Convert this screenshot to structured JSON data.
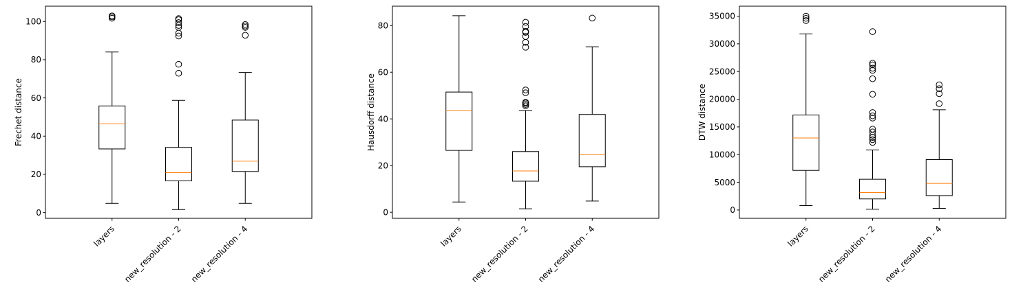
{
  "chart_data": [
    {
      "type": "box",
      "title": "",
      "xlabel": "",
      "ylabel": "Frechet distance",
      "categories": [
        "layers",
        "new_resolution - 2",
        "new_resolution - 4"
      ],
      "ylim": [
        -3,
        108
      ],
      "yticks": [
        0,
        20,
        40,
        60,
        80,
        100
      ],
      "boxes": [
        {
          "whisker_low": 4.8,
          "q1": 33.3,
          "median": 46.4,
          "q3": 55.8,
          "whisker_high": 84.0,
          "outliers": [
            101.7,
            102.4,
            102.9
          ]
        },
        {
          "whisker_low": 1.6,
          "q1": 16.6,
          "median": 20.9,
          "q3": 34.1,
          "whisker_high": 58.7,
          "outliers": [
            72.9,
            77.6,
            92.4,
            93.9,
            96.9,
            97.9,
            99.4,
            100.9,
            101.5
          ]
        },
        {
          "whisker_low": 4.8,
          "q1": 21.5,
          "median": 26.9,
          "q3": 48.4,
          "whisker_high": 73.3,
          "outliers": [
            92.8,
            96.9,
            97.6,
            98.4
          ]
        }
      ]
    },
    {
      "type": "box",
      "title": "",
      "xlabel": "",
      "ylabel": "Hausdorff distance",
      "categories": [
        "layers",
        "new_resolution - 2",
        "new_resolution - 4"
      ],
      "ylim": [
        -2.6,
        88.3
      ],
      "yticks": [
        0,
        20,
        40,
        60,
        80
      ],
      "boxes": [
        {
          "whisker_low": 4.4,
          "q1": 26.5,
          "median": 43.6,
          "q3": 51.5,
          "whisker_high": 84.2,
          "outliers": []
        },
        {
          "whisker_low": 1.5,
          "q1": 13.3,
          "median": 17.7,
          "q3": 26.0,
          "whisker_high": 43.6,
          "outliers": [
            45.6,
            46.2,
            46.8,
            47.1,
            51.2,
            52.4,
            70.7,
            72.8,
            75.3,
            77.1,
            77.5,
            79.6,
            81.4
          ]
        },
        {
          "whisker_low": 4.8,
          "q1": 19.5,
          "median": 24.7,
          "q3": 41.9,
          "whisker_high": 70.9,
          "outliers": [
            83.2
          ]
        }
      ]
    },
    {
      "type": "box",
      "title": "",
      "xlabel": "",
      "ylabel": "DTW distance",
      "categories": [
        "layers",
        "new_resolution - 2",
        "new_resolution - 4"
      ],
      "ylim": [
        -1500,
        36800
      ],
      "yticks": [
        0,
        5000,
        10000,
        15000,
        20000,
        25000,
        30000,
        35000
      ],
      "boxes": [
        {
          "whisker_low": 800,
          "q1": 7150,
          "median": 13000,
          "q3": 17150,
          "whisker_high": 31800,
          "outliers": [
            34200,
            34600,
            35000
          ]
        },
        {
          "whisker_low": 150,
          "q1": 2000,
          "median": 3150,
          "q3": 5550,
          "whisker_high": 10850,
          "outliers": [
            12200,
            12700,
            13100,
            13500,
            14100,
            14600,
            16600,
            17000,
            17600,
            20900,
            23700,
            25200,
            25600,
            26200,
            26500,
            32200
          ]
        },
        {
          "whisker_low": 300,
          "q1": 2600,
          "median": 4800,
          "q3": 9100,
          "whisker_high": 18100,
          "outliers": [
            19200,
            21000,
            21900,
            22600
          ]
        }
      ]
    }
  ],
  "colors": {
    "box": "#000000",
    "median": "#ff7f0e",
    "background": "#ffffff"
  }
}
